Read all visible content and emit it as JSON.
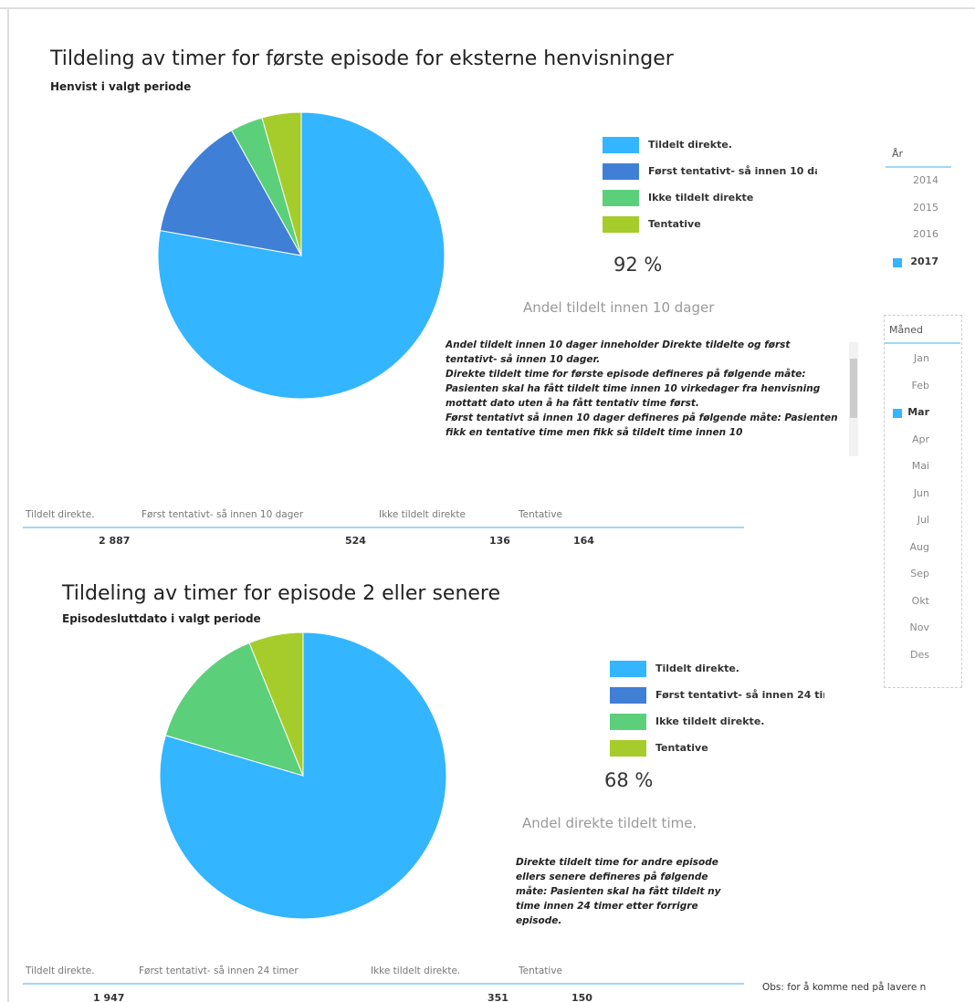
{
  "chart_data": [
    {
      "type": "pie",
      "title": "Tildeling av timer for første episode for eksterne henvisninger",
      "subtitle": "Henvist i valgt periode",
      "categories": [
        "Tildelt direkte.",
        "Først tentativt- så innen 10 dager",
        "Ikke tildelt direkte",
        "Tentative"
      ],
      "values": [
        2887,
        524,
        136,
        164
      ],
      "value_labels": [
        "2 887",
        "524",
        "136",
        "164"
      ],
      "colors": [
        "#33b5ff",
        "#3f80d6",
        "#5ccf7b",
        "#a5cc2b"
      ],
      "legend": "right"
    },
    {
      "type": "pie",
      "title": "Tildeling av timer for episode 2 eller senere",
      "subtitle": "Episodesluttdato i valgt periode",
      "categories": [
        "Tildelt direkte.",
        "Først tentativt- så innen 24 timer",
        "Ikke tildelt direkte.",
        "Tentative"
      ],
      "values": [
        1947,
        null,
        351,
        150
      ],
      "value_labels": [
        "1 947",
        null,
        "351",
        "150"
      ],
      "colors": [
        "#33b5ff",
        "#3f80d6",
        "#5ccf7b",
        "#a5cc2b"
      ],
      "legend": "right"
    }
  ],
  "panels": [
    {
      "kpi": "92 %",
      "kpi_label": "Andel tildelt innen 10 dager",
      "description": [
        "Andel tildelt innen 10 dager inneholder Direkte tildelte og først tentativt- så innen 10 dager.",
        "Direkte tildelt time for første episode defineres på følgende måte: Pasienten skal ha fått tildelt time innen 10 virkedager fra henvisning mottatt dato uten å ha fått tentativ time først.",
        "Først tentativt så innen 10 dager defineres på følgende måte: Pasienten fikk en tentative time men fikk så tildelt time innen 10"
      ]
    },
    {
      "kpi": "68 %",
      "kpi_label": "Andel direkte tildelt time.",
      "description": [
        "Direkte tildelt time for andre episode ellers senere defineres på følgende måte: Pasienten skal ha fått tildelt ny time innen 24 timer etter forrigre episode."
      ]
    }
  ],
  "slicers": {
    "year": {
      "title": "År",
      "items": [
        "2014",
        "2015",
        "2016",
        "2017"
      ],
      "selected": "2017"
    },
    "month": {
      "title": "Måned",
      "items": [
        "Jan",
        "Feb",
        "Mar",
        "Apr",
        "Mai",
        "Jun",
        "Jul",
        "Aug",
        "Sep",
        "Okt",
        "Nov",
        "Des"
      ],
      "selected": "Mar"
    }
  },
  "note": "Obs: for å komme ned på lavere n"
}
